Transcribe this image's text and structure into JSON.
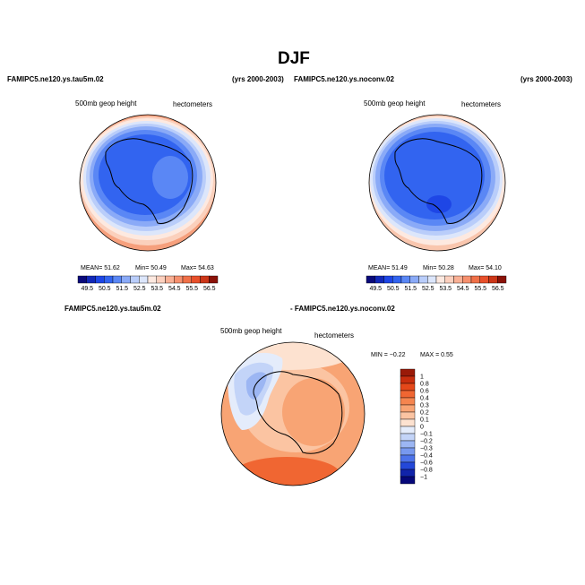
{
  "figure": {
    "title": "DJF"
  },
  "panels": [
    {
      "case_name": "FAMIPC5.ne120.ys.tau5m.02",
      "years": "(yrs 2000-2003)",
      "field_label": "500mb  geop  height",
      "units": "hectometers",
      "stats": {
        "mean": "MEAN=  51.62",
        "min": "Min=  50.49",
        "max": "Max=  54.63"
      }
    },
    {
      "case_name": "FAMIPC5.ne120.ys.noconv.02",
      "years": "(yrs 2000-2003)",
      "field_label": "500mb  geop  height",
      "units": "hectometers",
      "stats": {
        "mean": "MEAN=  51.49",
        "min": "Min=  50.28",
        "max": "Max=  54.10"
      }
    }
  ],
  "difference_panel": {
    "case_a": "FAMIPC5.ne120.ys.tau5m.02",
    "case_b": "- FAMIPC5.ne120.ys.noconv.02",
    "field_label": "500mb  geop  height",
    "units": "hectometers",
    "stats": {
      "min": "MIN =   −0.22",
      "max": "MAX =    0.55"
    }
  },
  "chart_data": [
    {
      "type": "heatmap",
      "projection": "south-polar-stereographic",
      "title": "FAMIPC5.ne120.ys.tau5m.02",
      "colorbar_orientation": "horizontal",
      "colorbar_labels": [
        "49.5",
        "50.5",
        "51.5",
        "52.5",
        "53.5",
        "54.5",
        "55.5",
        "56.5"
      ],
      "colorbar_colors": [
        "#0a0a7a",
        "#1228b8",
        "#1e46e6",
        "#3264f0",
        "#5a87f5",
        "#8aaaf7",
        "#b9cdfa",
        "#dce6fb",
        "#fde9e0",
        "#fcd0be",
        "#f9b095",
        "#f6906e",
        "#f07048",
        "#e8502a",
        "#cc3618",
        "#8a1208"
      ],
      "mean": 51.62,
      "min": 50.49,
      "max": 54.63
    },
    {
      "type": "heatmap",
      "projection": "south-polar-stereographic",
      "title": "FAMIPC5.ne120.ys.noconv.02",
      "colorbar_orientation": "horizontal",
      "colorbar_labels": [
        "49.5",
        "50.5",
        "51.5",
        "52.5",
        "53.5",
        "54.5",
        "55.5",
        "56.5"
      ],
      "colorbar_colors": [
        "#0a0a7a",
        "#1228b8",
        "#1e46e6",
        "#3264f0",
        "#5a87f5",
        "#8aaaf7",
        "#b9cdfa",
        "#dce6fb",
        "#fde9e0",
        "#fcd0be",
        "#f9b095",
        "#f6906e",
        "#f07048",
        "#e8502a",
        "#cc3618",
        "#8a1208"
      ],
      "mean": 51.49,
      "min": 50.28,
      "max": 54.1
    },
    {
      "type": "heatmap",
      "projection": "south-polar-stereographic",
      "title": "FAMIPC5.ne120.ys.tau5m.02 - FAMIPC5.ne120.ys.noconv.02",
      "colorbar_orientation": "vertical",
      "colorbar_labels": [
        "1",
        "0.8",
        "0.6",
        "0.4",
        "0.3",
        "0.2",
        "0.1",
        "0",
        "−0.1",
        "−0.2",
        "−0.3",
        "−0.4",
        "−0.6",
        "−0.8",
        "−1"
      ],
      "colorbar_colors": [
        "#9a1a08",
        "#c82e0e",
        "#e5481a",
        "#f06632",
        "#f5854f",
        "#f8a474",
        "#fbc4a2",
        "#fde2d0",
        "#e4ecfb",
        "#c3d4f8",
        "#9cb6f3",
        "#7899ef",
        "#4d73ea",
        "#2448d9",
        "#1124aa",
        "#06087a"
      ],
      "min": -0.22,
      "max": 0.55
    }
  ]
}
